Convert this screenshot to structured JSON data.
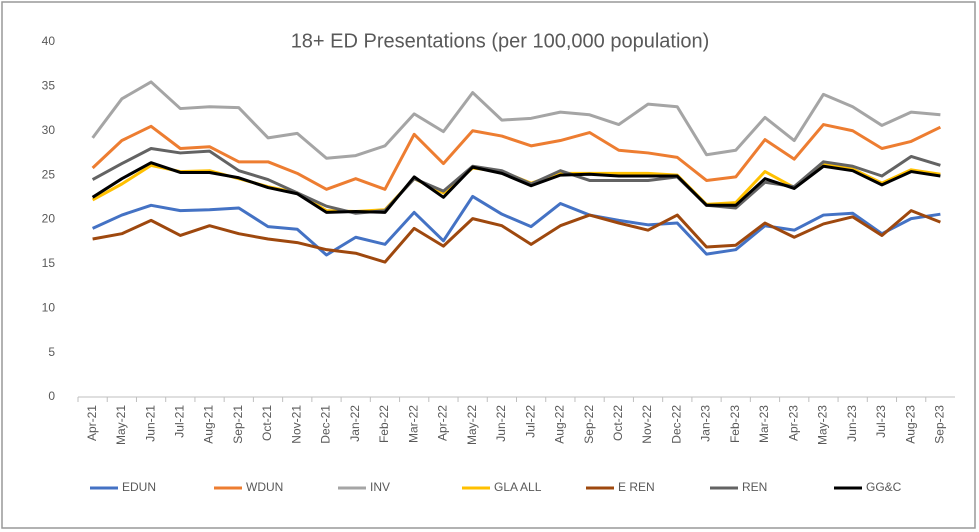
{
  "chart_data": {
    "type": "line",
    "title": "18+ ED Presentations (per 100,000 population)",
    "categories": [
      "Apr-21",
      "May-21",
      "Jun-21",
      "Jul-21",
      "Aug-21",
      "Sep-21",
      "Oct-21",
      "Nov-21",
      "Dec-21",
      "Jan-22",
      "Feb-22",
      "Mar-22",
      "Apr-22",
      "May-22",
      "Jun-22",
      "Jul-22",
      "Aug-22",
      "Sep-22",
      "Oct-22",
      "Nov-22",
      "Dec-22",
      "Jan-23",
      "Feb-23",
      "Mar-23",
      "Apr-23",
      "May-23",
      "Jun-23",
      "Jul-23",
      "Aug-23",
      "Sep-23"
    ],
    "series": [
      {
        "name": "EDUN",
        "color": "#4472c4",
        "values": [
          19,
          20.5,
          21.6,
          21,
          21.1,
          21.3,
          19.2,
          18.9,
          16,
          18,
          17.2,
          20.8,
          17.6,
          22.6,
          20.6,
          19.2,
          21.8,
          20.5,
          19.9,
          19.4,
          19.6,
          16.1,
          16.6,
          19.3,
          18.8,
          20.5,
          20.7,
          18.4,
          20.1,
          20.6
        ]
      },
      {
        "name": "WDUN",
        "color": "#ed7d31",
        "values": [
          25.8,
          28.9,
          30.5,
          28,
          28.2,
          26.5,
          26.5,
          25.2,
          23.4,
          24.6,
          23.4,
          29.6,
          26.3,
          30,
          29.4,
          28.3,
          28.9,
          29.8,
          27.8,
          27.5,
          27,
          24.4,
          24.8,
          29,
          26.8,
          30.7,
          30,
          28,
          28.8,
          30.4
        ]
      },
      {
        "name": "INV",
        "color": "#a5a5a5",
        "values": [
          29.2,
          33.6,
          35.5,
          32.5,
          32.7,
          32.6,
          29.2,
          29.7,
          26.9,
          27.2,
          28.3,
          31.9,
          29.9,
          34.3,
          31.2,
          31.4,
          32.1,
          31.8,
          30.7,
          33,
          32.7,
          27.3,
          27.8,
          31.5,
          28.9,
          34.1,
          32.7,
          30.6,
          32.1,
          31.8
        ]
      },
      {
        "name": "GLA ALL",
        "color": "#ffc000",
        "values": [
          22.2,
          24,
          26.1,
          25.4,
          25.5,
          24.6,
          23.7,
          23,
          21,
          20.9,
          21.1,
          24.6,
          23,
          25.8,
          25.4,
          24.1,
          25.2,
          25.2,
          25.2,
          25.2,
          25,
          21.7,
          21.9,
          25.4,
          23.6,
          26.2,
          25.7,
          24.1,
          25.6,
          25.1
        ]
      },
      {
        "name": "E REN",
        "color": "#9e480e",
        "values": [
          17.8,
          18.4,
          19.9,
          18.2,
          19.3,
          18.4,
          17.8,
          17.4,
          16.6,
          16.2,
          15.2,
          19,
          17,
          20.1,
          19.3,
          17.2,
          19.3,
          20.5,
          19.6,
          18.8,
          20.5,
          16.9,
          17.1,
          19.6,
          18,
          19.5,
          20.3,
          18.2,
          21,
          19.7
        ]
      },
      {
        "name": "REN",
        "color": "#636363",
        "values": [
          24.5,
          26.3,
          28,
          27.5,
          27.7,
          25.5,
          24.5,
          23,
          21.5,
          20.7,
          21,
          24.6,
          23.2,
          26,
          25.5,
          24,
          25.5,
          24.4,
          24.4,
          24.4,
          24.8,
          21.6,
          21.3,
          24.2,
          23.7,
          26.5,
          26,
          24.9,
          27.1,
          26.1
        ]
      },
      {
        "name": "GG&C",
        "color": "#000000",
        "values": [
          22.5,
          24.6,
          26.4,
          25.3,
          25.3,
          24.7,
          23.6,
          22.9,
          20.8,
          20.9,
          20.8,
          24.8,
          22.5,
          25.9,
          25.2,
          23.8,
          25,
          25.1,
          24.9,
          24.9,
          24.9,
          21.6,
          21.6,
          24.6,
          23.5,
          26,
          25.5,
          23.9,
          25.4,
          24.9
        ]
      }
    ],
    "ylim": [
      0,
      40
    ],
    "yticks": [
      0,
      5,
      10,
      15,
      20,
      25,
      30,
      35,
      40
    ],
    "grid": false,
    "legend": "bottom"
  }
}
